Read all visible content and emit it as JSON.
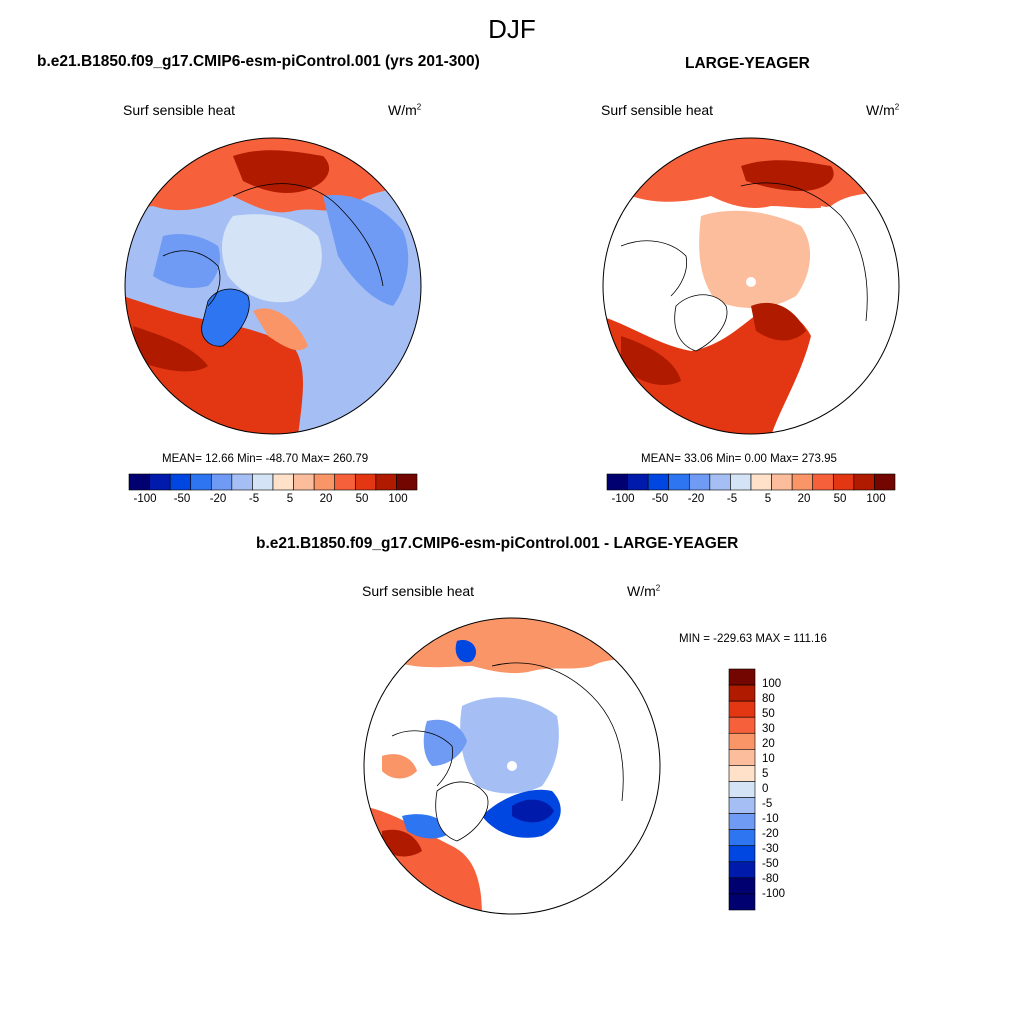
{
  "season_title": "DJF",
  "variable": "Surf sensible heat",
  "units_base": "W/m",
  "units_exp": "2",
  "colors": {
    "diverging": [
      "#000070",
      "#001bac",
      "#0046e0",
      "#2e75f2",
      "#709bf4",
      "#a5bff5",
      "#d4e4f6",
      "#ffe0c8",
      "#fcbd9c",
      "#f99567",
      "#f6603a",
      "#e23712",
      "#b01b00",
      "#730600"
    ],
    "diff": [
      "#730600",
      "#b01b00",
      "#e23712",
      "#f6603a",
      "#f99567",
      "#fcbd9c",
      "#ffe0c8",
      "#d4e4f6",
      "#a5bff5",
      "#709bf4",
      "#2e75f2",
      "#0046e0",
      "#001bac",
      "#000070"
    ],
    "land_outline": "#000000"
  },
  "panels": {
    "control": {
      "title": "b.e21.B1850.f09_g17.CMIP6-esm-piControl.001 (yrs 201-300)",
      "stats": "MEAN=  12.66  Min= -48.70  Max= 260.79"
    },
    "obs": {
      "title": "LARGE-YEAGER",
      "stats": "MEAN=  33.06  Min=    0.00  Max= 273.95"
    },
    "diff": {
      "title": "b.e21.B1850.f09_g17.CMIP6-esm-piControl.001 - LARGE-YEAGER",
      "minmax": "MIN = -229.63 MAX = 111.16"
    }
  },
  "horizontal_colorbar_labels": [
    "-100",
    "-50",
    "-20",
    "-5",
    "5",
    "20",
    "50",
    "100"
  ],
  "vertical_colorbar_labels": [
    "100",
    "80",
    "50",
    "30",
    "20",
    "10",
    "5",
    "0",
    "-5",
    "-10",
    "-20",
    "-30",
    "-50",
    "-80",
    "-100"
  ]
}
